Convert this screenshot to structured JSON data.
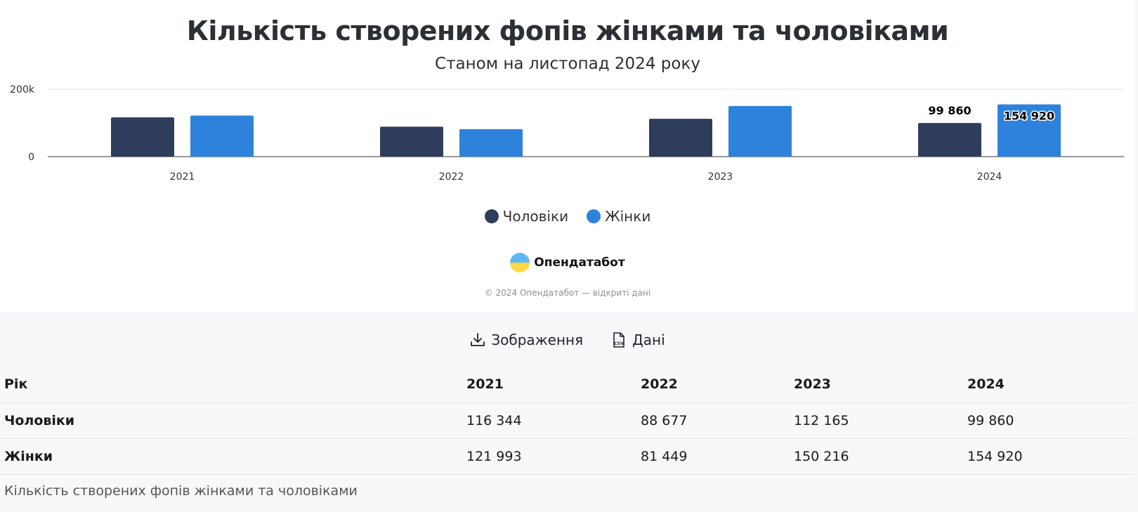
{
  "chart_data": {
    "type": "bar",
    "title": "Кількість створених фопів жінками та чоловіками",
    "subtitle": "Станом на листопад 2024 року",
    "categories": [
      "2021",
      "2022",
      "2023",
      "2024"
    ],
    "series": [
      {
        "name": "Чоловіки",
        "color": "#2e3d5c",
        "values": [
          116344,
          88677,
          112165,
          99860
        ]
      },
      {
        "name": "Жінки",
        "color": "#2f82db",
        "values": [
          121993,
          81449,
          150216,
          154920
        ]
      }
    ],
    "ylim": [
      0,
      200000
    ],
    "yticks": [
      "0",
      "200k"
    ],
    "yticks_values": [
      0,
      200000
    ],
    "data_labels": {
      "2024": [
        "99 860",
        "154 920"
      ]
    },
    "legend": "bottom-center",
    "grid": true
  },
  "brand": {
    "name": "Опендатабот"
  },
  "copyright": "© 2024 Опендатабот — відкриті дані",
  "actions": {
    "image_label": "Зображення",
    "data_label": "Дані"
  },
  "table": {
    "header": [
      "Рік",
      "2021",
      "2022",
      "2023",
      "2024"
    ],
    "rows": [
      [
        "Чоловіки",
        "116 344",
        "88 677",
        "112 165",
        "99 860"
      ],
      [
        "Жінки",
        "121 993",
        "81 449",
        "150 216",
        "154 920"
      ]
    ],
    "caption": "Кількість створених фопів жінками та чоловіками"
  }
}
